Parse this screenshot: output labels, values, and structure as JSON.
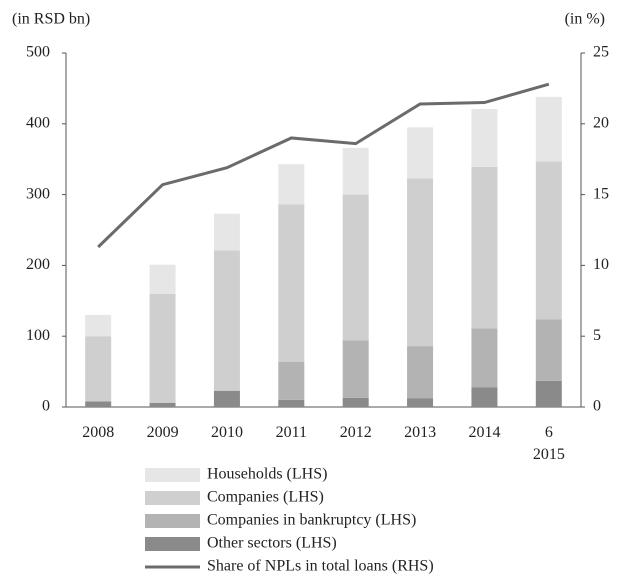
{
  "chart_data": {
    "type": "bar",
    "stacked": true,
    "y_label": "(in RSD bn)",
    "y2_label": "(in %)",
    "categories": [
      "2008",
      "2009",
      "2010",
      "2011",
      "2012",
      "2013",
      "2014",
      "6\n2015"
    ],
    "series": [
      {
        "name": "Households (LHS)",
        "color": "#e6e6e6",
        "values": [
          30,
          41,
          52,
          57,
          66,
          72,
          82,
          91
        ]
      },
      {
        "name": "Companies (LHS)",
        "color": "#cfcfcf",
        "values": [
          92,
          154,
          198,
          222,
          206,
          237,
          228,
          223
        ]
      },
      {
        "name": "Companies in bankruptcy (LHS)",
        "color": "#b3b3b3",
        "values": [
          0,
          0,
          0,
          54,
          81,
          74,
          83,
          87
        ]
      },
      {
        "name": "Other sectors (LHS)",
        "color": "#8a8a8a",
        "values": [
          8,
          6,
          23,
          10,
          13,
          12,
          28,
          37
        ]
      },
      {
        "name": "Share of NPLs in total loans (RHS)",
        "color": "#6b6b6b",
        "type": "line",
        "axis": "y2",
        "values": [
          11.3,
          15.7,
          16.9,
          19.0,
          18.6,
          21.4,
          21.5,
          22.8
        ]
      }
    ],
    "ylim": [
      0,
      500
    ],
    "yticks": [
      0,
      100,
      200,
      300,
      400,
      500
    ],
    "y2lim": [
      0,
      25
    ],
    "y2ticks": [
      0,
      5,
      10,
      15,
      20,
      25
    ],
    "grid": false
  }
}
